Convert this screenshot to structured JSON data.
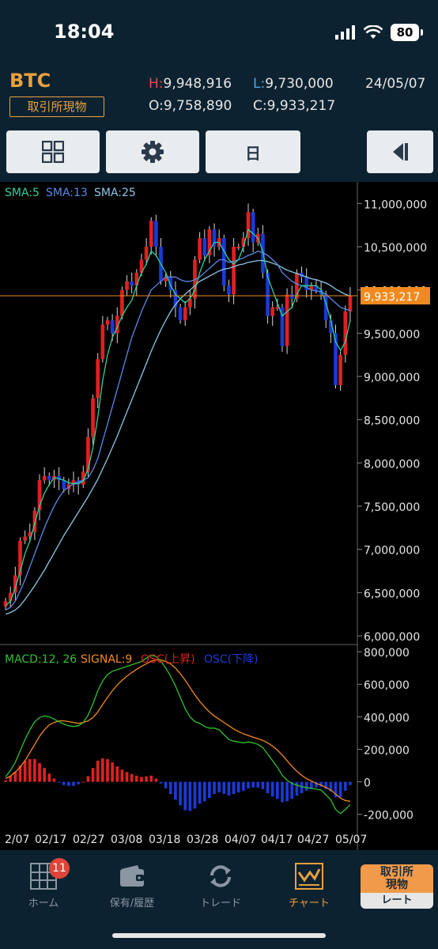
{
  "status": {
    "time": "18:04",
    "battery": "80"
  },
  "header": {
    "symbol": "BTC",
    "market": "取引所現物",
    "high_label": "H:",
    "high": "9,948,916",
    "low_label": "L:",
    "low": "9,730,000",
    "open_label": "O:",
    "open": "9,758,890",
    "close_label": "C:",
    "close": "9,933,217",
    "date": "24/05/07"
  },
  "toolbar": {
    "period": "日",
    "icons": [
      "grid-icon",
      "gear-icon",
      "collapse-left-icon"
    ]
  },
  "nav": {
    "items": [
      {
        "label": "ホーム",
        "icon": "home-grid-icon",
        "badge": "11"
      },
      {
        "label": "保有/履歴",
        "icon": "wallet-icon"
      },
      {
        "label": "トレード",
        "icon": "trade-arrows-icon"
      },
      {
        "label": "チャート",
        "icon": "chart-icon",
        "active": true
      }
    ],
    "rate_top": "取引所\n現物",
    "rate_bottom": "レート"
  },
  "colors": {
    "up": "#e02020",
    "down": "#1a3ad6",
    "sma5": "#2fd0a0",
    "sma13": "#5a8ae8",
    "sma25": "#8ac8e8",
    "macd": "#30c030",
    "signal": "#f08a20",
    "last_price": "#f08a20"
  },
  "chart_data": [
    {
      "type": "candlestick",
      "legend": [
        "SMA:5",
        "SMA:13",
        "SMA:25"
      ],
      "last_price": 9933217,
      "last_price_label": "9,933,217",
      "ylim": [
        5900000,
        11250000
      ],
      "y_ticks": [
        6000000,
        6500000,
        7000000,
        7500000,
        8000000,
        8500000,
        9000000,
        9500000,
        10000000,
        10500000,
        11000000
      ],
      "y_tick_labels": [
        "6,000,000",
        "6,500,000",
        "7,000,000",
        "7,500,000",
        "8,000,000",
        "8,500,000",
        "9,000,000",
        "9,500,000",
        "10,000,000",
        "10,500,000",
        "11,000,000"
      ],
      "x_labels": [
        "2/07",
        "02/17",
        "02/27",
        "03/08",
        "03/18",
        "03/28",
        "04/07",
        "04/17",
        "04/27",
        "05/07"
      ],
      "closes": [
        6400000,
        6500000,
        6700000,
        7100000,
        7150000,
        7200000,
        7450000,
        7800000,
        7850000,
        7800000,
        7850000,
        7800000,
        7700000,
        7750000,
        7800000,
        7750000,
        7900000,
        8300000,
        8750000,
        9200000,
        9600000,
        9650000,
        9500000,
        9700000,
        10000000,
        10100000,
        10050000,
        10200000,
        10350000,
        10500000,
        10800000,
        10500000,
        10100000,
        10150000,
        10000000,
        9800000,
        9650000,
        9800000,
        9900000,
        10350000,
        10600000,
        10400000,
        10700000,
        10500000,
        10600000,
        10050000,
        9950000,
        10500000,
        10500000,
        10600000,
        10900000,
        10550000,
        10650000,
        10200000,
        9700000,
        9800000,
        9800000,
        9350000,
        9950000,
        9900000,
        10200000,
        10150000,
        10000000,
        10050000,
        10000000,
        9950000,
        9650000,
        9500000,
        8900000,
        9250000,
        9750000,
        9933217
      ],
      "sma5": [
        6350000,
        6400000,
        6550000,
        6750000,
        6950000,
        7100000,
        7300000,
        7500000,
        7650000,
        7750000,
        7830000,
        7820000,
        7800000,
        7770000,
        7760000,
        7760000,
        7790000,
        7930000,
        8180000,
        8530000,
        8950000,
        9250000,
        9450000,
        9570000,
        9700000,
        9800000,
        9880000,
        10050000,
        10200000,
        10300000,
        10450000,
        10400000,
        10300000,
        10200000,
        10050000,
        9950000,
        9900000,
        9850000,
        9900000,
        10000000,
        10200000,
        10350000,
        10450000,
        10550000,
        10550000,
        10450000,
        10350000,
        10300000,
        10350000,
        10500000,
        10700000,
        10650000,
        10600000,
        10450000,
        10150000,
        10000000,
        9850000,
        9700000,
        9750000,
        9800000,
        9950000,
        10050000,
        10050000,
        10050000,
        10050000,
        10000000,
        9850000,
        9650000,
        9400000,
        9300000,
        9400000,
        9650000
      ],
      "sma13": [
        6300000,
        6330000,
        6400000,
        6520000,
        6650000,
        6800000,
        6950000,
        7100000,
        7250000,
        7380000,
        7500000,
        7600000,
        7680000,
        7720000,
        7760000,
        7780000,
        7800000,
        7830000,
        7920000,
        8050000,
        8250000,
        8450000,
        8650000,
        8850000,
        9050000,
        9250000,
        9450000,
        9600000,
        9750000,
        9880000,
        10000000,
        10050000,
        10100000,
        10150000,
        10150000,
        10150000,
        10120000,
        10100000,
        10100000,
        10120000,
        10150000,
        10200000,
        10250000,
        10300000,
        10350000,
        10350000,
        10320000,
        10330000,
        10350000,
        10370000,
        10400000,
        10420000,
        10450000,
        10430000,
        10400000,
        10350000,
        10300000,
        10200000,
        10150000,
        10100000,
        10070000,
        10050000,
        10030000,
        10000000,
        9990000,
        9980000,
        9950000,
        9900000,
        9850000,
        9800000,
        9780000,
        9760000
      ],
      "sma25": [
        6250000,
        6270000,
        6300000,
        6350000,
        6420000,
        6500000,
        6580000,
        6670000,
        6760000,
        6860000,
        6960000,
        7060000,
        7160000,
        7250000,
        7340000,
        7430000,
        7520000,
        7610000,
        7710000,
        7810000,
        7930000,
        8050000,
        8180000,
        8310000,
        8450000,
        8590000,
        8730000,
        8870000,
        9010000,
        9150000,
        9290000,
        9420000,
        9540000,
        9650000,
        9750000,
        9830000,
        9900000,
        9950000,
        10000000,
        10050000,
        10100000,
        10130000,
        10160000,
        10190000,
        10220000,
        10240000,
        10250000,
        10270000,
        10290000,
        10300000,
        10320000,
        10330000,
        10340000,
        10340000,
        10330000,
        10310000,
        10290000,
        10260000,
        10230000,
        10210000,
        10190000,
        10170000,
        10150000,
        10130000,
        10120000,
        10100000,
        10080000,
        10050000,
        10010000,
        9980000,
        9950000,
        9930000
      ]
    },
    {
      "type": "line",
      "legend": [
        "MACD:12, 26",
        "SIGNAL:9",
        "OSC(上昇)",
        "OSC(下降)"
      ],
      "ylim": [
        -250000,
        820000
      ],
      "y_ticks": [
        800000,
        600000,
        400000,
        200000,
        0,
        -200000
      ],
      "y_tick_labels": [
        "800,000",
        "600,000",
        "400,000",
        "200,000",
        "0",
        "-200,000"
      ],
      "macd": [
        30000,
        70000,
        120000,
        190000,
        260000,
        320000,
        370000,
        395000,
        405000,
        400000,
        385000,
        370000,
        355000,
        345000,
        340000,
        345000,
        365000,
        410000,
        480000,
        560000,
        620000,
        660000,
        680000,
        690000,
        700000,
        710000,
        720000,
        730000,
        740000,
        760000,
        780000,
        770000,
        740000,
        700000,
        650000,
        590000,
        520000,
        450000,
        400000,
        370000,
        360000,
        340000,
        330000,
        330000,
        320000,
        290000,
        260000,
        250000,
        245000,
        240000,
        245000,
        240000,
        230000,
        210000,
        170000,
        130000,
        90000,
        40000,
        10000,
        -10000,
        -20000,
        -30000,
        -35000,
        -40000,
        -45000,
        -50000,
        -80000,
        -110000,
        -170000,
        -195000,
        -170000,
        -140000
      ],
      "signal": [
        20000,
        35000,
        60000,
        90000,
        130000,
        180000,
        230000,
        280000,
        320000,
        350000,
        365000,
        375000,
        375000,
        370000,
        365000,
        360000,
        365000,
        375000,
        395000,
        430000,
        475000,
        520000,
        560000,
        595000,
        625000,
        650000,
        672000,
        692000,
        710000,
        726000,
        742000,
        750000,
        750000,
        740000,
        725000,
        700000,
        665000,
        625000,
        580000,
        535000,
        495000,
        460000,
        430000,
        405000,
        385000,
        365000,
        345000,
        325000,
        310000,
        295000,
        285000,
        275000,
        265000,
        255000,
        240000,
        220000,
        195000,
        165000,
        130000,
        95000,
        65000,
        40000,
        20000,
        5000,
        -10000,
        -20000,
        -35000,
        -50000,
        -75000,
        -100000,
        -115000,
        -120000
      ]
    }
  ]
}
